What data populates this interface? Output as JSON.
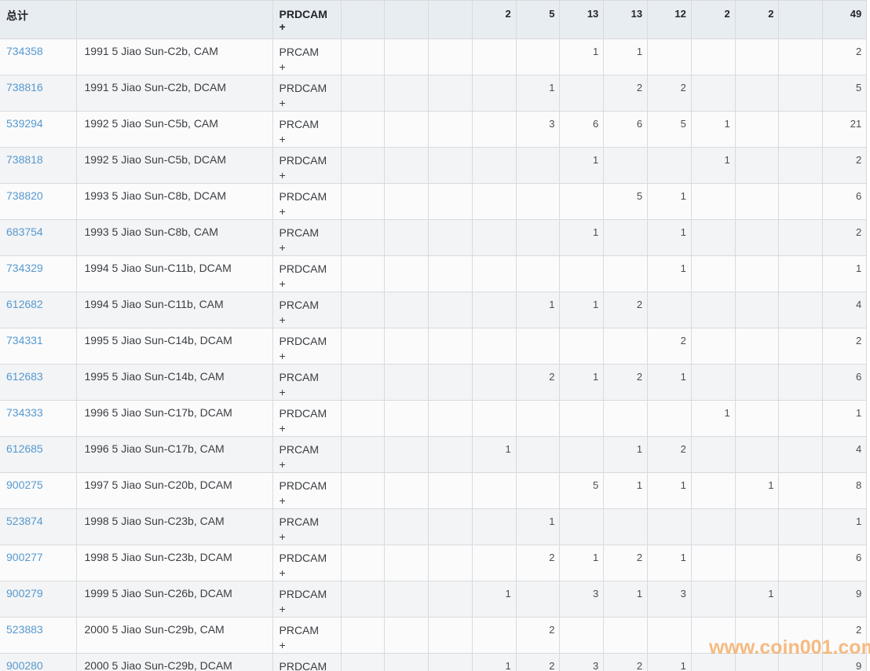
{
  "table": {
    "header": {
      "total_label": "总计",
      "desc_label": "",
      "category_label": "PRDCAM",
      "category_plus": "+",
      "values": [
        "",
        "",
        "",
        "2",
        "5",
        "13",
        "13",
        "12",
        "2",
        "2",
        "",
        "49"
      ]
    },
    "rows": [
      {
        "id": "734358",
        "desc": "1991 5 Jiao Sun-C2b, CAM",
        "category": "PRCAM",
        "plus": "+",
        "values": [
          "",
          "",
          "",
          "",
          "",
          "1",
          "1",
          "",
          "",
          "",
          "",
          "2"
        ]
      },
      {
        "id": "738816",
        "desc": "1991 5 Jiao Sun-C2b, DCAM",
        "category": "PRDCAM",
        "plus": "+",
        "values": [
          "",
          "",
          "",
          "",
          "1",
          "",
          "2",
          "2",
          "",
          "",
          "",
          "5"
        ]
      },
      {
        "id": "539294",
        "desc": "1992 5 Jiao Sun-C5b, CAM",
        "category": "PRCAM",
        "plus": "+",
        "values": [
          "",
          "",
          "",
          "",
          "3",
          "6",
          "6",
          "5",
          "1",
          "",
          "",
          "21"
        ]
      },
      {
        "id": "738818",
        "desc": "1992 5 Jiao Sun-C5b, DCAM",
        "category": "PRDCAM",
        "plus": "+",
        "values": [
          "",
          "",
          "",
          "",
          "",
          "1",
          "",
          "",
          "1",
          "",
          "",
          "2"
        ]
      },
      {
        "id": "738820",
        "desc": "1993 5 Jiao Sun-C8b, DCAM",
        "category": "PRDCAM",
        "plus": "+",
        "values": [
          "",
          "",
          "",
          "",
          "",
          "",
          "5",
          "1",
          "",
          "",
          "",
          "6"
        ]
      },
      {
        "id": "683754",
        "desc": "1993 5 Jiao Sun-C8b, CAM",
        "category": "PRCAM",
        "plus": "+",
        "values": [
          "",
          "",
          "",
          "",
          "",
          "1",
          "",
          "1",
          "",
          "",
          "",
          "2"
        ]
      },
      {
        "id": "734329",
        "desc": "1994 5 Jiao Sun-C11b, DCAM",
        "category": "PRDCAM",
        "plus": "+",
        "values": [
          "",
          "",
          "",
          "",
          "",
          "",
          "",
          "1",
          "",
          "",
          "",
          "1"
        ]
      },
      {
        "id": "612682",
        "desc": "1994 5 Jiao Sun-C11b, CAM",
        "category": "PRCAM",
        "plus": "+",
        "values": [
          "",
          "",
          "",
          "",
          "1",
          "1",
          "2",
          "",
          "",
          "",
          "",
          "4"
        ]
      },
      {
        "id": "734331",
        "desc": "1995 5 Jiao Sun-C14b, DCAM",
        "category": "PRDCAM",
        "plus": "+",
        "values": [
          "",
          "",
          "",
          "",
          "",
          "",
          "",
          "2",
          "",
          "",
          "",
          "2"
        ]
      },
      {
        "id": "612683",
        "desc": "1995 5 Jiao Sun-C14b, CAM",
        "category": "PRCAM",
        "plus": "+",
        "values": [
          "",
          "",
          "",
          "",
          "2",
          "1",
          "2",
          "1",
          "",
          "",
          "",
          "6"
        ]
      },
      {
        "id": "734333",
        "desc": "1996 5 Jiao Sun-C17b, DCAM",
        "category": "PRDCAM",
        "plus": "+",
        "values": [
          "",
          "",
          "",
          "",
          "",
          "",
          "",
          "",
          "1",
          "",
          "",
          "1"
        ]
      },
      {
        "id": "612685",
        "desc": "1996 5 Jiao Sun-C17b, CAM",
        "category": "PRCAM",
        "plus": "+",
        "values": [
          "",
          "",
          "",
          "1",
          "",
          "",
          "1",
          "2",
          "",
          "",
          "",
          "4"
        ]
      },
      {
        "id": "900275",
        "desc": "1997 5 Jiao Sun-C20b, DCAM",
        "category": "PRDCAM",
        "plus": "+",
        "values": [
          "",
          "",
          "",
          "",
          "",
          "5",
          "1",
          "1",
          "",
          "1",
          "",
          "8"
        ]
      },
      {
        "id": "523874",
        "desc": "1998 5 Jiao Sun-C23b, CAM",
        "category": "PRCAM",
        "plus": "+",
        "values": [
          "",
          "",
          "",
          "",
          "1",
          "",
          "",
          "",
          "",
          "",
          "",
          "1"
        ]
      },
      {
        "id": "900277",
        "desc": "1998 5 Jiao Sun-C23b, DCAM",
        "category": "PRDCAM",
        "plus": "+",
        "values": [
          "",
          "",
          "",
          "",
          "2",
          "1",
          "2",
          "1",
          "",
          "",
          "",
          "6"
        ]
      },
      {
        "id": "900279",
        "desc": "1999 5 Jiao Sun-C26b, DCAM",
        "category": "PRDCAM",
        "plus": "+",
        "values": [
          "",
          "",
          "",
          "1",
          "",
          "3",
          "1",
          "3",
          "",
          "1",
          "",
          "9"
        ]
      },
      {
        "id": "523883",
        "desc": "2000 5 Jiao Sun-C29b, CAM",
        "category": "PRCAM",
        "plus": "+",
        "values": [
          "",
          "",
          "",
          "",
          "2",
          "",
          "",
          "",
          "",
          "",
          "",
          "2"
        ]
      },
      {
        "id": "900280",
        "desc": "2000 5 Jiao Sun-C29b, DCAM",
        "category": "PRDCAM",
        "plus": "+",
        "values": [
          "",
          "",
          "",
          "1",
          "2",
          "3",
          "2",
          "1",
          "",
          "",
          "",
          "9"
        ]
      }
    ]
  },
  "watermark": {
    "text": "www.coin001.com"
  },
  "colors": {
    "link": "#5699ce",
    "header_bg": "#e8edf2",
    "border": "#d8dbde",
    "row_even_bg": "#f3f4f6",
    "row_odd_bg": "#fbfbfc",
    "watermark": "#f5aa60"
  }
}
